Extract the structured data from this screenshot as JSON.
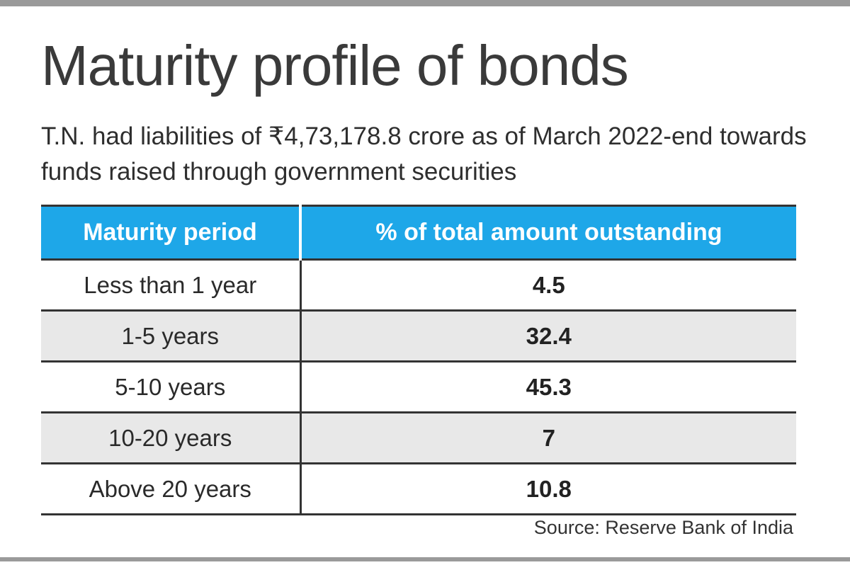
{
  "chart_data": {
    "type": "table",
    "title": "Maturity profile of bonds",
    "subtitle": "T.N. had liabilities of ₹4,73,178.8 crore as of March 2022-end towards funds raised through government securities",
    "columns": [
      "Maturity period",
      "% of total amount outstanding"
    ],
    "rows": [
      {
        "period": "Less than 1 year",
        "value": "4.5"
      },
      {
        "period": "1-5 years",
        "value": "32.4"
      },
      {
        "period": "5-10 years",
        "value": "45.3"
      },
      {
        "period": "10-20 years",
        "value": "7"
      },
      {
        "period": "Above 20 years",
        "value": "10.8"
      }
    ],
    "source": "Source: Reserve Bank of India"
  },
  "colors": {
    "header_background": "#1ea7e8",
    "header_text": "#ffffff",
    "stripe_background": "#e8e8e8",
    "rule": "#9a9a9a"
  }
}
